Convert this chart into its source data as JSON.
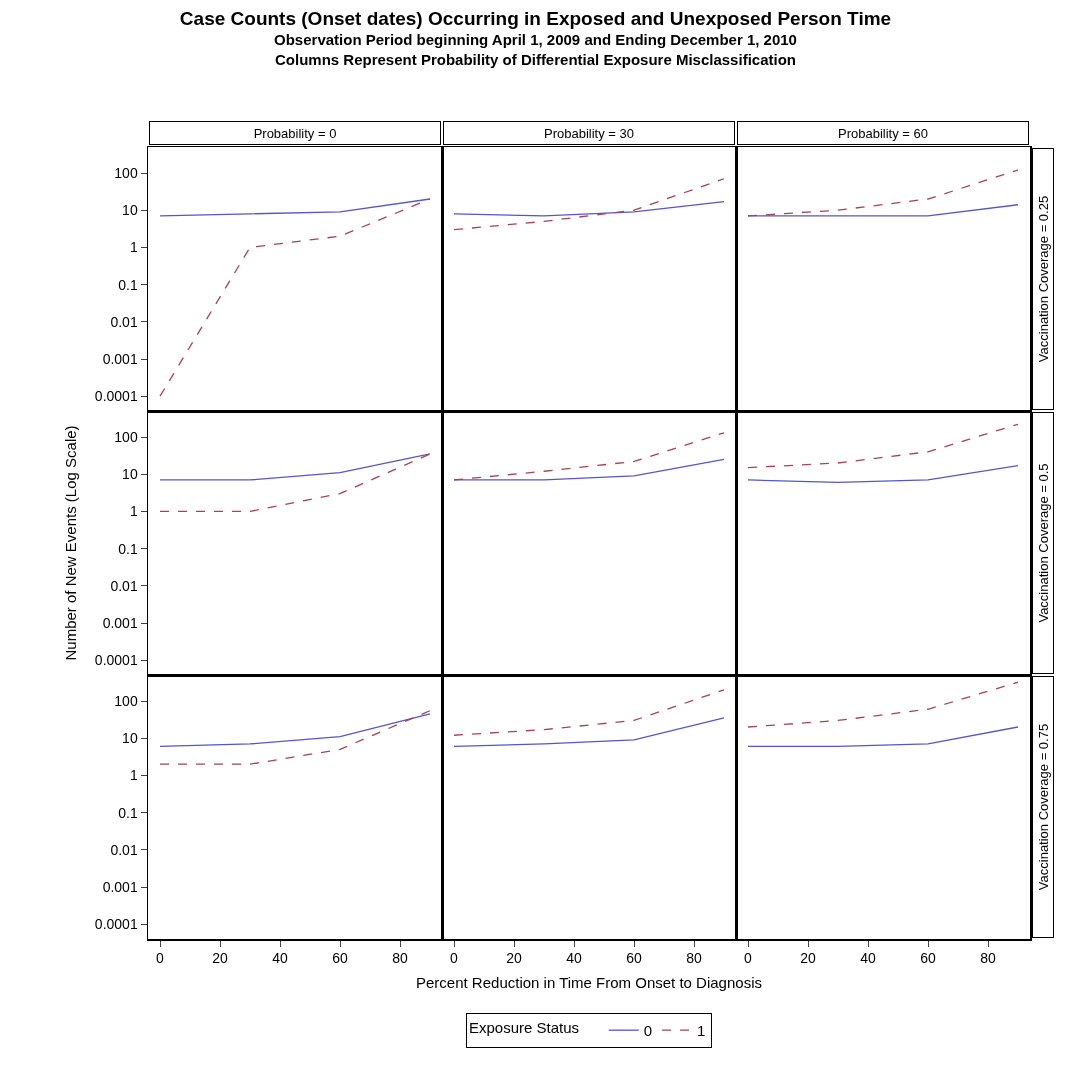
{
  "chart_data": [
    {
      "type": "other",
      "title": "Case Counts (Onset dates) Occurring in Exposed and Unexposed Person Time",
      "subtitle": "Observation Period beginning April 1, 2009 and Ending December 1, 2010\nColumns Represent Probability of Differential Exposure Misclassification"
    },
    {
      "type": "line",
      "title": "Probability = 0",
      "x": [
        0,
        30,
        60,
        90
      ],
      "log": true,
      "xlim": [
        -4,
        94
      ],
      "xticks": [
        0,
        20,
        40,
        60,
        80
      ],
      "ylim": [
        4e-05,
        500
      ],
      "yticks": [
        0.0001,
        0.001,
        0.01,
        0.1,
        1,
        10,
        100
      ],
      "tick_labels": "y",
      "series": [
        {
          "color": "#5555cc",
          "line_style": "solid",
          "values": [
            7,
            8,
            9,
            20
          ]
        },
        {
          "color": "#a8434f",
          "line_style": "dashed",
          "values": [
            0.0001,
            1,
            2,
            20
          ]
        }
      ]
    },
    {
      "type": "line",
      "title": "Probability = 30",
      "x": [
        0,
        30,
        60,
        90
      ],
      "log": true,
      "xlim": [
        -4,
        94
      ],
      "xticks": [
        0,
        20,
        40,
        60,
        80
      ],
      "ylim": [
        4e-05,
        500
      ],
      "yticks": [
        0.0001,
        0.001,
        0.01,
        0.1,
        1,
        10,
        100
      ],
      "tick_labels": false,
      "series": [
        {
          "color": "#5555cc",
          "line_style": "solid",
          "values": [
            8,
            7,
            9,
            17
          ]
        },
        {
          "color": "#a8434f",
          "line_style": "dashed",
          "values": [
            3,
            5,
            10,
            70
          ]
        }
      ]
    },
    {
      "type": "line",
      "title": "Probability = 60",
      "y2label": "Vaccination Coverage = 0.25",
      "x": [
        0,
        30,
        60,
        90
      ],
      "log": true,
      "xlim": [
        -4,
        94
      ],
      "xticks": [
        0,
        20,
        40,
        60,
        80
      ],
      "ylim": [
        4e-05,
        500
      ],
      "yticks": [
        0.0001,
        0.001,
        0.01,
        0.1,
        1,
        10,
        100
      ],
      "tick_labels": false,
      "series": [
        {
          "color": "#5555cc",
          "line_style": "solid",
          "values": [
            7,
            7,
            7,
            14
          ]
        },
        {
          "color": "#a8434f",
          "line_style": "dashed",
          "values": [
            7,
            10,
            20,
            120
          ]
        }
      ]
    },
    {
      "type": "line",
      "ylabel": "Number of New Events (Log Scale)",
      "x": [
        0,
        30,
        60,
        90
      ],
      "log": true,
      "xlim": [
        -4,
        94
      ],
      "xticks": [
        0,
        20,
        40,
        60,
        80
      ],
      "ylim": [
        4e-05,
        500
      ],
      "yticks": [
        0.0001,
        0.001,
        0.01,
        0.1,
        1,
        10,
        100
      ],
      "tick_labels": "y",
      "series": [
        {
          "color": "#5555cc",
          "line_style": "solid",
          "values": [
            7,
            7,
            11,
            35
          ]
        },
        {
          "color": "#a8434f",
          "line_style": "dashed",
          "values": [
            1,
            1,
            3,
            35
          ]
        }
      ]
    },
    {
      "type": "line",
      "x": [
        0,
        30,
        60,
        90
      ],
      "log": true,
      "xlim": [
        -4,
        94
      ],
      "xticks": [
        0,
        20,
        40,
        60,
        80
      ],
      "ylim": [
        4e-05,
        500
      ],
      "yticks": [
        0.0001,
        0.001,
        0.01,
        0.1,
        1,
        10,
        100
      ],
      "tick_labels": false,
      "series": [
        {
          "color": "#5555cc",
          "line_style": "solid",
          "values": [
            7,
            7,
            9,
            25
          ]
        },
        {
          "color": "#a8434f",
          "line_style": "dashed",
          "values": [
            7,
            12,
            22,
            130
          ]
        }
      ]
    },
    {
      "type": "line",
      "y2label": "Vaccination Coverage = 0.5",
      "x": [
        0,
        30,
        60,
        90
      ],
      "log": true,
      "xlim": [
        -4,
        94
      ],
      "xticks": [
        0,
        20,
        40,
        60,
        80
      ],
      "ylim": [
        4e-05,
        500
      ],
      "yticks": [
        0.0001,
        0.001,
        0.01,
        0.1,
        1,
        10,
        100
      ],
      "tick_labels": false,
      "series": [
        {
          "color": "#5555cc",
          "line_style": "solid",
          "values": [
            7,
            6,
            7,
            17
          ]
        },
        {
          "color": "#a8434f",
          "line_style": "dashed",
          "values": [
            15,
            20,
            40,
            220
          ]
        }
      ]
    },
    {
      "type": "line",
      "x": [
        0,
        30,
        60,
        90
      ],
      "log": true,
      "xlim": [
        -4,
        94
      ],
      "xticks": [
        0,
        20,
        40,
        60,
        80
      ],
      "ylim": [
        4e-05,
        500
      ],
      "yticks": [
        0.0001,
        0.001,
        0.01,
        0.1,
        1,
        10,
        100
      ],
      "series": [
        {
          "color": "#5555cc",
          "line_style": "solid",
          "values": [
            6,
            7,
            11,
            45
          ]
        },
        {
          "color": "#a8434f",
          "line_style": "dashed",
          "values": [
            2,
            2,
            5,
            55
          ]
        }
      ]
    },
    {
      "type": "line",
      "xlabel": "Percent Reduction in Time From Onset to Diagnosis",
      "legend": "bottom",
      "legend_title": "Exposure Status",
      "x": [
        0,
        30,
        60,
        90
      ],
      "log": true,
      "xlim": [
        -4,
        94
      ],
      "xticks": [
        0,
        20,
        40,
        60,
        80
      ],
      "ylim": [
        4e-05,
        500
      ],
      "yticks": [
        0.0001,
        0.001,
        0.01,
        0.1,
        1,
        10,
        100
      ],
      "tick_labels": "x",
      "series": [
        {
          "name": "0",
          "color": "#5555cc",
          "line_style": "solid",
          "values": [
            6,
            7,
            9,
            35
          ]
        },
        {
          "name": "1",
          "color": "#a8434f",
          "line_style": "dashed",
          "values": [
            12,
            17,
            30,
            200
          ]
        }
      ]
    },
    {
      "type": "line",
      "y2label": "Vaccination Coverage = 0.75",
      "x": [
        0,
        30,
        60,
        90
      ],
      "log": true,
      "xlim": [
        -4,
        94
      ],
      "xticks": [
        0,
        20,
        40,
        60,
        80
      ],
      "ylim": [
        4e-05,
        500
      ],
      "yticks": [
        0.0001,
        0.001,
        0.01,
        0.1,
        1,
        10,
        100
      ],
      "tick_labels": "x",
      "series": [
        {
          "color": "#5555cc",
          "line_style": "solid",
          "values": [
            6,
            6,
            7,
            20
          ]
        },
        {
          "color": "#a8434f",
          "line_style": "dashed",
          "values": [
            20,
            30,
            60,
            320
          ]
        }
      ]
    }
  ]
}
